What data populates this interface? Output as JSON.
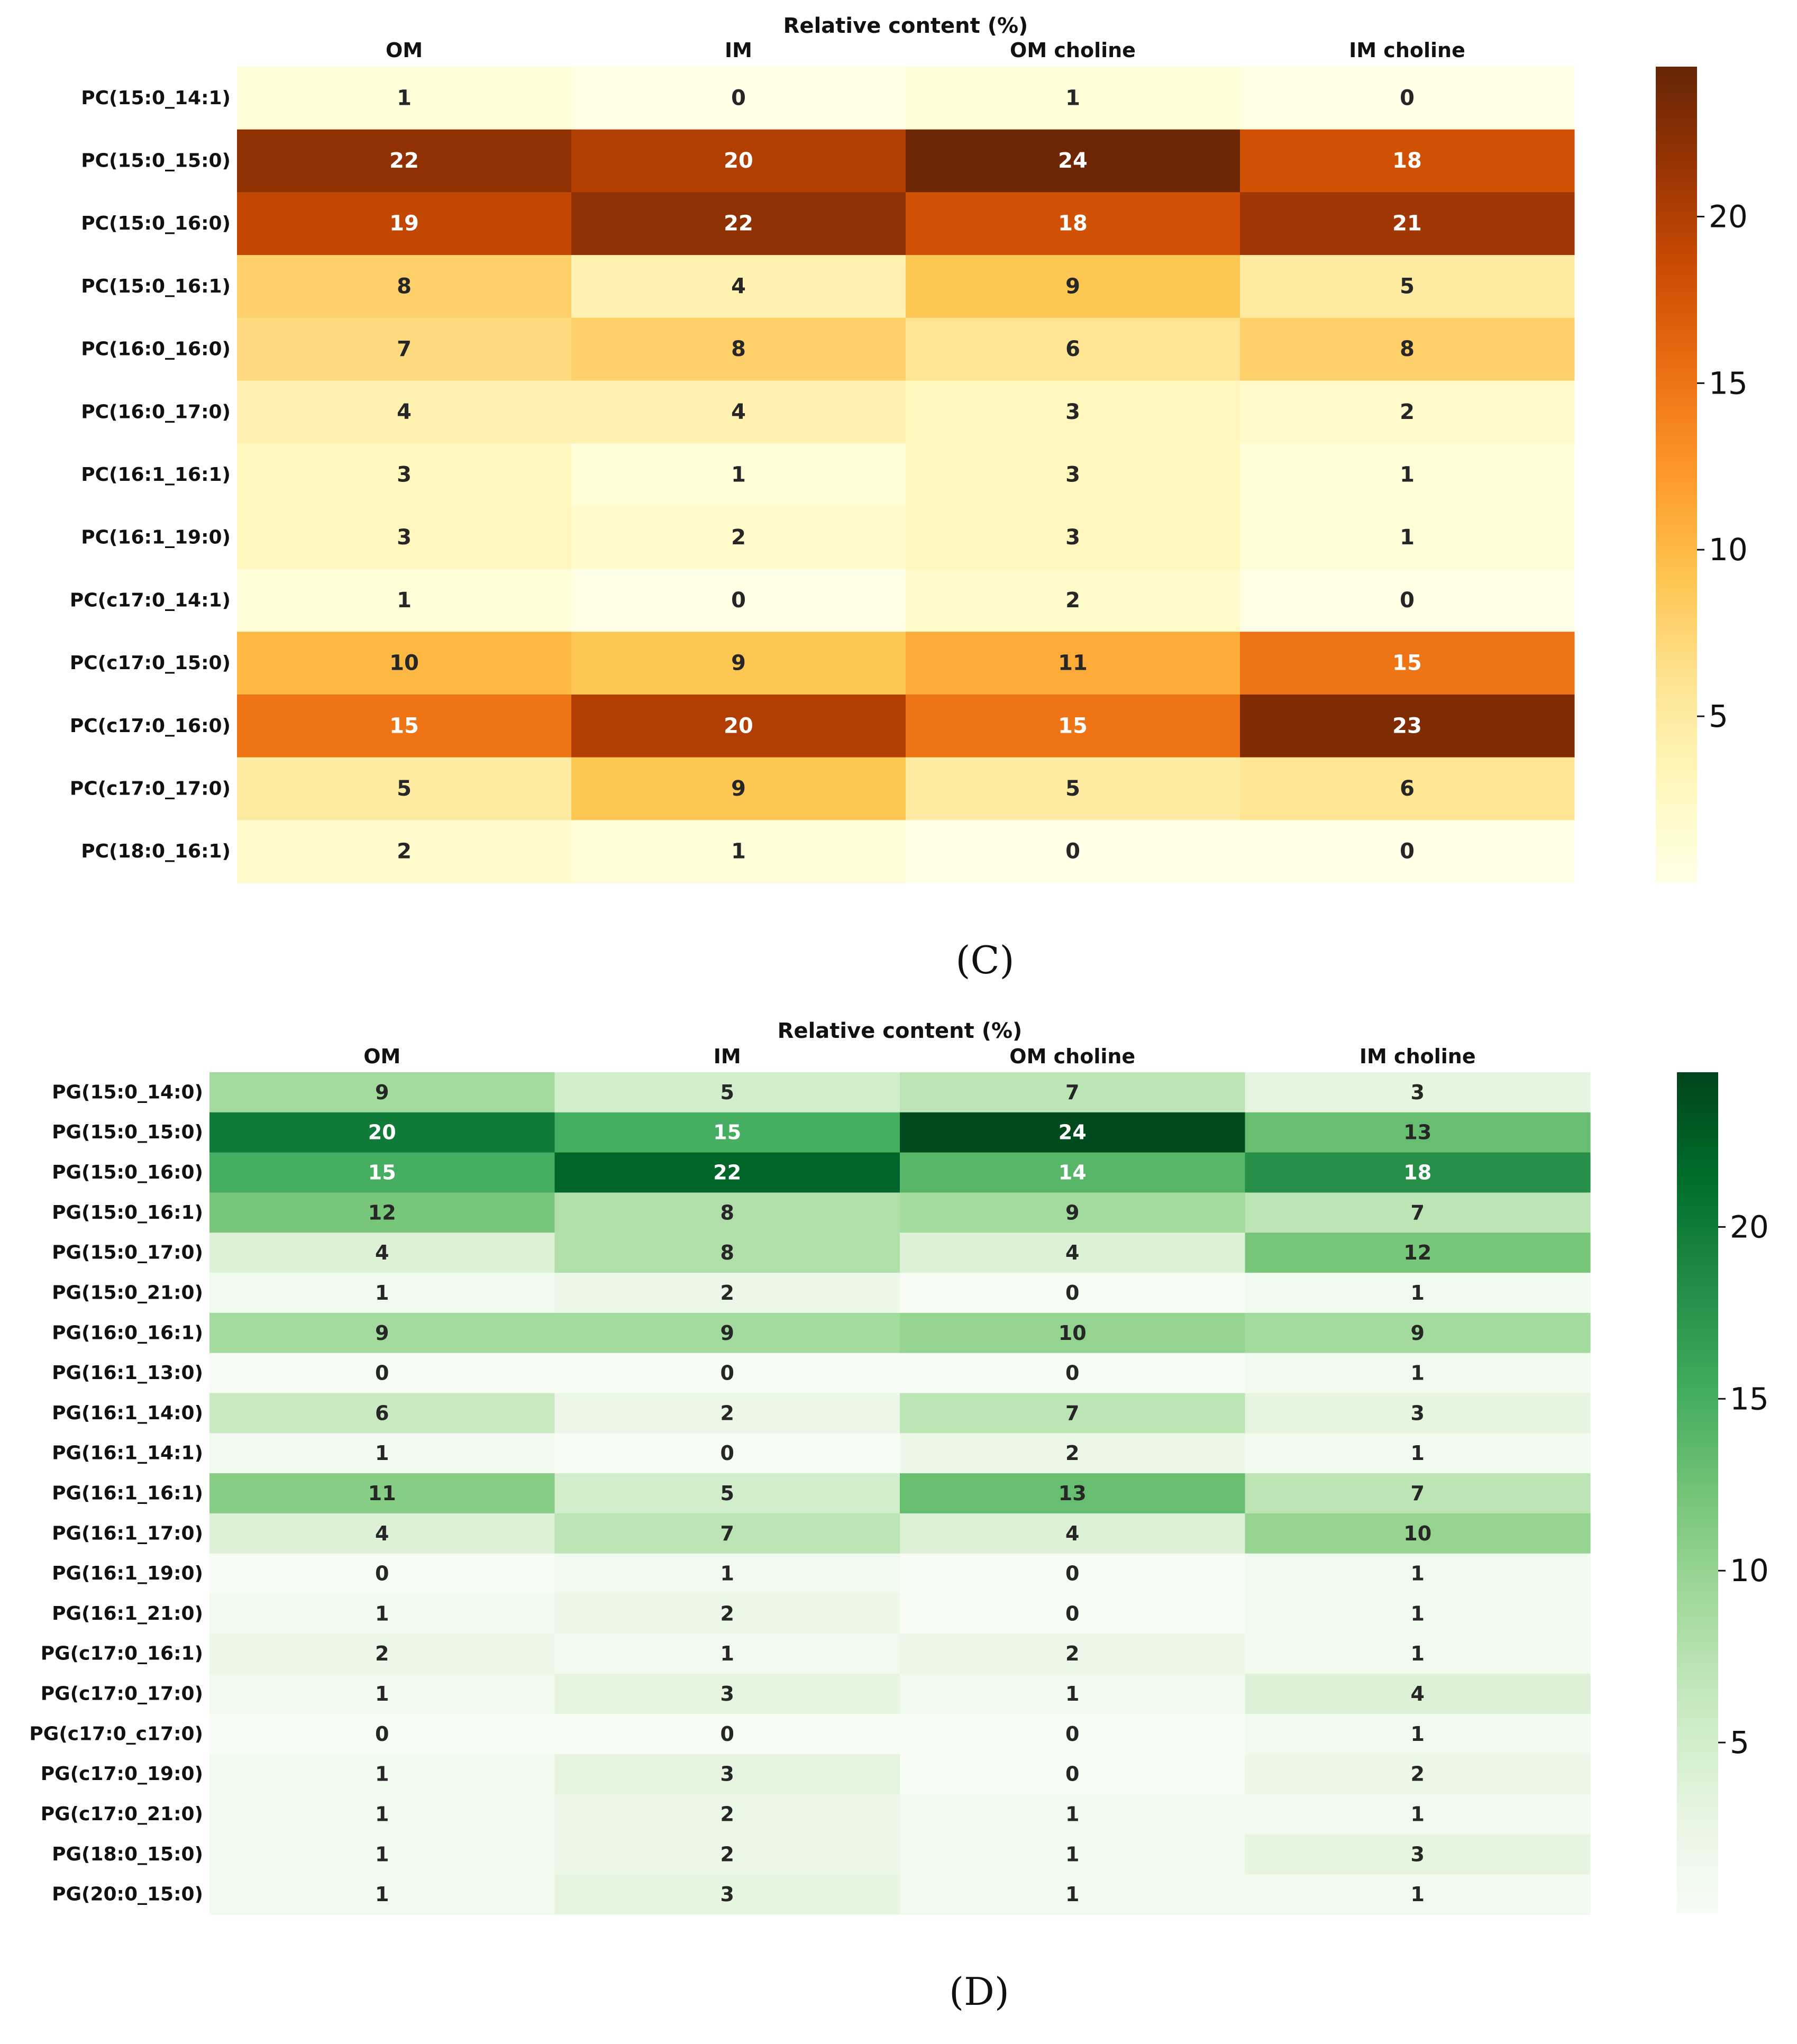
{
  "chart_data": [
    {
      "type": "heatmap",
      "panel_label": "(C)",
      "title": "Relative content (%)",
      "columns": [
        "OM",
        "IM",
        "OM choline",
        "IM choline"
      ],
      "rows": [
        "PC(15:0_14:1)",
        "PC(15:0_15:0)",
        "PC(15:0_16:0)",
        "PC(15:0_16:1)",
        "PC(16:0_16:0)",
        "PC(16:0_17:0)",
        "PC(16:1_16:1)",
        "PC(16:1_19:0)",
        "PC(c17:0_14:1)",
        "PC(c17:0_15:0)",
        "PC(c17:0_16:0)",
        "PC(c17:0_17:0)",
        "PC(18:0_16:1)"
      ],
      "values": [
        [
          1,
          0,
          1,
          0
        ],
        [
          22,
          20,
          24,
          18
        ],
        [
          19,
          22,
          18,
          21
        ],
        [
          8,
          4,
          9,
          5
        ],
        [
          7,
          8,
          6,
          8
        ],
        [
          4,
          4,
          3,
          2
        ],
        [
          3,
          1,
          3,
          1
        ],
        [
          3,
          2,
          3,
          1
        ],
        [
          1,
          0,
          2,
          0
        ],
        [
          10,
          9,
          11,
          15
        ],
        [
          15,
          20,
          15,
          23
        ],
        [
          5,
          9,
          5,
          6
        ],
        [
          2,
          1,
          0,
          0
        ]
      ],
      "colormap": "YlOrBr",
      "colorbar": {
        "min": 0,
        "max": 24.5,
        "ticks": [
          5,
          10,
          15,
          20
        ],
        "tick_labels": [
          "5",
          "10",
          "15",
          "20"
        ]
      }
    },
    {
      "type": "heatmap",
      "panel_label": "(D)",
      "title": "Relative content (%)",
      "columns": [
        "OM",
        "IM",
        "OM choline",
        "IM choline"
      ],
      "rows": [
        "PG(15:0_14:0)",
        "PG(15:0_15:0)",
        "PG(15:0_16:0)",
        "PG(15:0_16:1)",
        "PG(15:0_17:0)",
        "PG(15:0_21:0)",
        "PG(16:0_16:1)",
        "PG(16:1_13:0)",
        "PG(16:1_14:0)",
        "PG(16:1_14:1)",
        "PG(16:1_16:1)",
        "PG(16:1_17:0)",
        "PG(16:1_19:0)",
        "PG(16:1_21:0)",
        "PG(c17:0_16:1)",
        "PG(c17:0_17:0)",
        "PG(c17:0_c17:0)",
        "PG(c17:0_19:0)",
        "PG(c17:0_21:0)",
        "PG(18:0_15:0)",
        "PG(20:0_15:0)"
      ],
      "values": [
        [
          9,
          5,
          7,
          3
        ],
        [
          20,
          15,
          24,
          13
        ],
        [
          15,
          22,
          14,
          18
        ],
        [
          12,
          8,
          9,
          7
        ],
        [
          4,
          8,
          4,
          12
        ],
        [
          1,
          2,
          0,
          1
        ],
        [
          9,
          9,
          10,
          9
        ],
        [
          0,
          0,
          0,
          1
        ],
        [
          6,
          2,
          7,
          3
        ],
        [
          1,
          0,
          2,
          1
        ],
        [
          11,
          5,
          13,
          7
        ],
        [
          4,
          7,
          4,
          10
        ],
        [
          0,
          1,
          0,
          1
        ],
        [
          1,
          2,
          0,
          1
        ],
        [
          2,
          1,
          2,
          1
        ],
        [
          1,
          3,
          1,
          4
        ],
        [
          0,
          0,
          0,
          1
        ],
        [
          1,
          3,
          0,
          2
        ],
        [
          1,
          2,
          1,
          1
        ],
        [
          1,
          2,
          1,
          3
        ],
        [
          1,
          3,
          1,
          1
        ]
      ],
      "colormap": "Greens",
      "colorbar": {
        "min": 0,
        "max": 24.5,
        "ticks": [
          5,
          10,
          15,
          20
        ],
        "tick_labels": [
          "5",
          "10",
          "15",
          "20"
        ]
      }
    }
  ]
}
